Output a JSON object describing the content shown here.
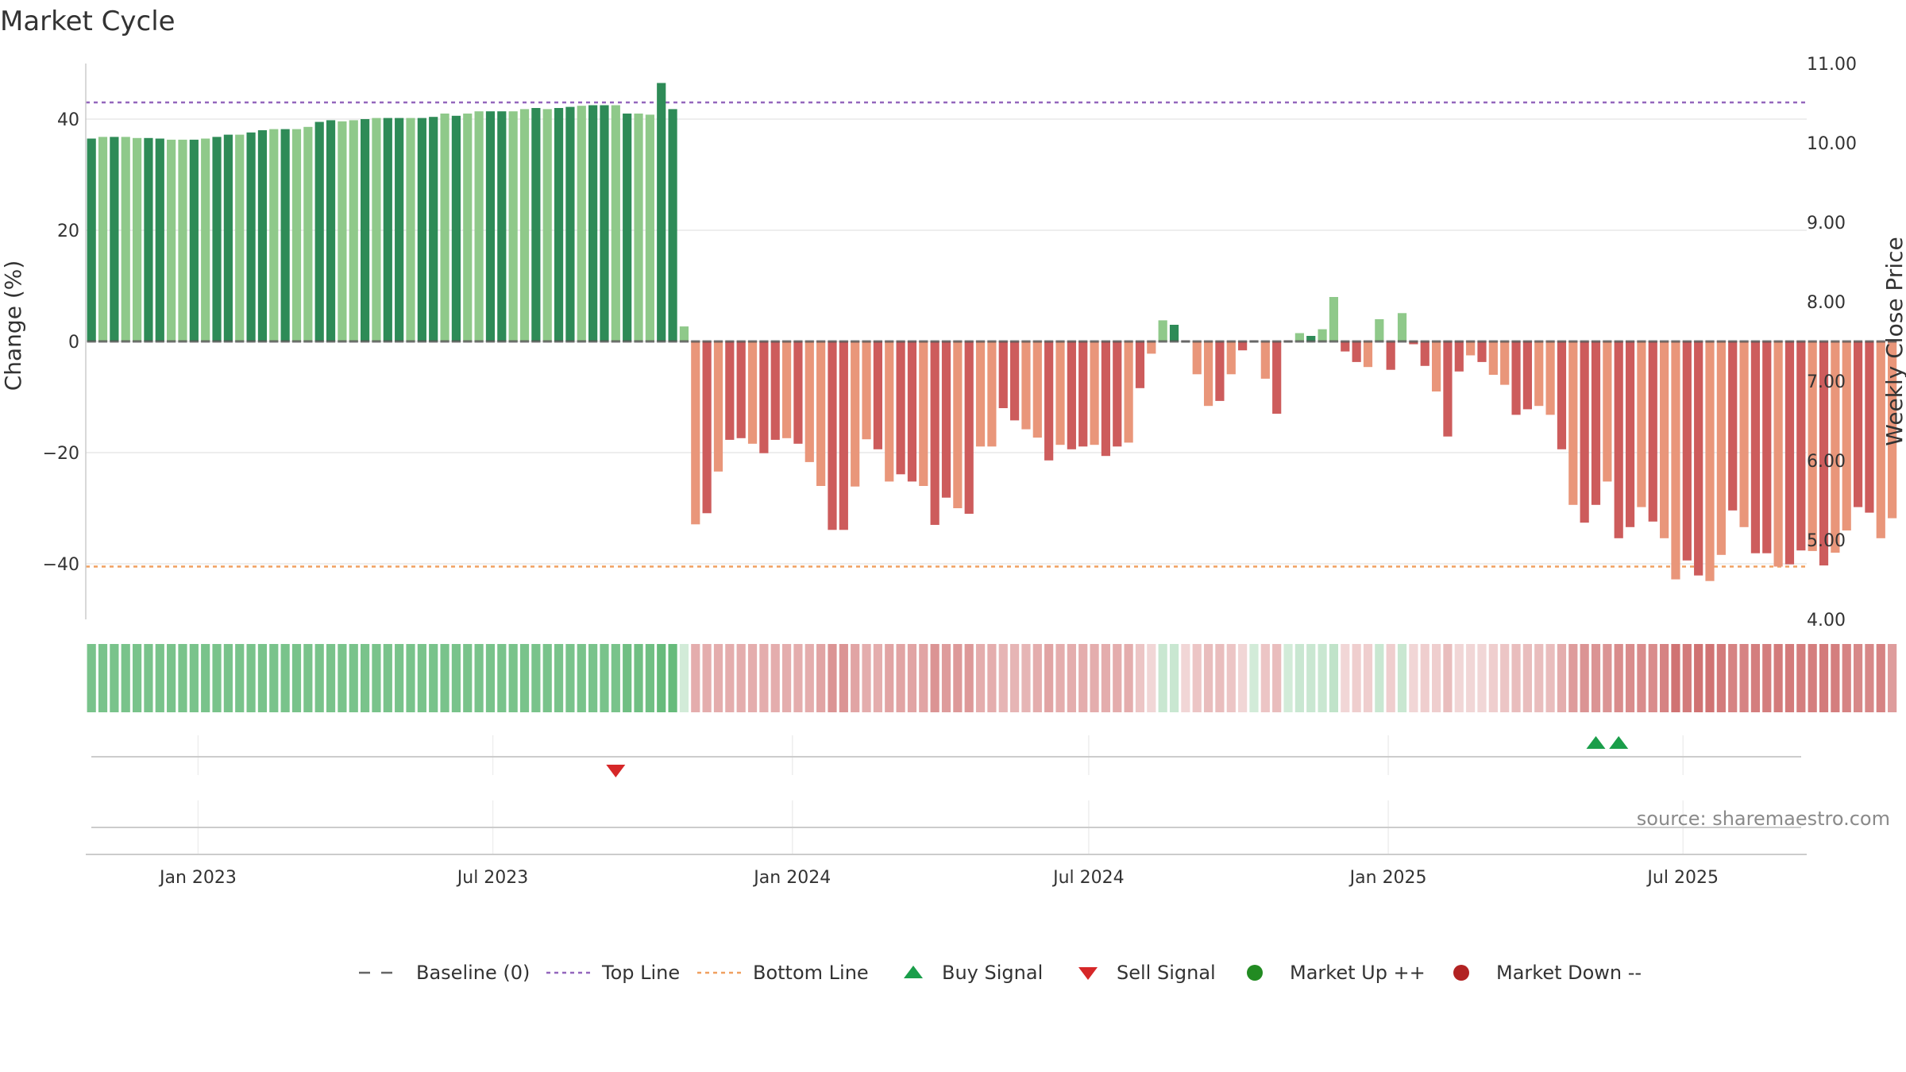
{
  "chart_data": {
    "type": "bar",
    "title": "Market Cycle",
    "ylabel": "Change (%)",
    "y2label": "Weekly Close Price",
    "ylim": [
      -50,
      50
    ],
    "y2lim": [
      4.0,
      11.0
    ],
    "y_ticks": [
      40,
      20,
      0,
      -20,
      -40
    ],
    "y_tick_labels": [
      "40",
      "20",
      "0",
      "−20",
      "−40"
    ],
    "y2_ticks": [
      11.0,
      10.0,
      9.0,
      8.0,
      7.0,
      6.0,
      5.0,
      4.0
    ],
    "y2_tick_labels": [
      "11.00",
      "10.00",
      "9.00",
      "8.00",
      "7.00",
      "6.00",
      "5.00",
      "4.00"
    ],
    "x_start": "2022-10-24",
    "x_end": "2025-09-15",
    "x_ticks": [
      "2023-01-01",
      "2023-07-01",
      "2024-01-01",
      "2024-07-01",
      "2025-01-01",
      "2025-07-01"
    ],
    "x_tick_labels": [
      "Jan 2023",
      "Jul 2023",
      "Jan 2024",
      "Jul 2024",
      "Jan 2025",
      "Jul 2025"
    ],
    "first_week": "2022-10-24",
    "week_step_days": 7,
    "values": [
      36.5,
      36.8,
      36.8,
      36.8,
      36.6,
      36.6,
      36.5,
      36.3,
      36.3,
      36.3,
      36.5,
      36.8,
      37.2,
      37.2,
      37.6,
      38.0,
      38.2,
      38.2,
      38.2,
      38.6,
      39.5,
      39.8,
      39.6,
      39.8,
      40.0,
      40.2,
      40.2,
      40.2,
      40.2,
      40.2,
      40.4,
      41.0,
      40.6,
      41.0,
      41.4,
      41.4,
      41.4,
      41.4,
      41.8,
      42.0,
      41.8,
      42.0,
      42.2,
      42.4,
      42.5,
      42.5,
      42.5,
      41.0,
      41.0,
      40.8,
      46.5,
      41.8,
      2.7,
      -32.9,
      -30.9,
      -23.4,
      -17.7,
      -17.4,
      -18.4,
      -20.1,
      -17.7,
      -17.4,
      -18.4,
      -21.7,
      -26.0,
      -33.9,
      -33.9,
      -26.1,
      -17.6,
      -19.4,
      -25.2,
      -23.9,
      -25.2,
      -26.0,
      -33.0,
      -28.1,
      -30.0,
      -31.0,
      -18.9,
      -18.9,
      -12.0,
      -14.2,
      -15.8,
      -17.3,
      -21.4,
      -18.6,
      -19.4,
      -18.9,
      -18.6,
      -20.6,
      -18.9,
      -18.2,
      -8.4,
      -2.2,
      3.8,
      3.0,
      0,
      -5.9,
      -11.6,
      -10.7,
      -5.9,
      -1.6,
      0,
      -6.7,
      -13.0,
      0,
      1.5,
      1.0,
      2.2,
      8.0,
      -1.8,
      -3.7,
      -4.6,
      4.0,
      -5.1,
      5.1,
      -0.5,
      -4.4,
      -9.0,
      -17.1,
      -5.4,
      -2.5,
      -3.7,
      -6.0,
      -7.8,
      -13.2,
      -12.2,
      -11.6,
      -13.2,
      -19.4,
      -29.4,
      -32.6,
      -29.4,
      -25.2,
      -35.4,
      -33.4,
      -29.8,
      -32.4,
      -35.4,
      -42.8,
      -39.4,
      -42.1,
      -43.1,
      -38.4,
      -30.4,
      -33.4,
      -38.1,
      -38.1,
      -40.5,
      -40.1,
      -37.6,
      -37.7,
      -40.3,
      -38.0,
      -34.0,
      -29.8,
      -30.8,
      -35.4,
      -31.8
    ],
    "market_strength": [
      0.75,
      0.75,
      0.75,
      0.75,
      0.75,
      0.75,
      0.75,
      0.75,
      0.75,
      0.75,
      0.75,
      0.75,
      0.75,
      0.75,
      0.75,
      0.75,
      0.75,
      0.75,
      0.75,
      0.75,
      0.75,
      0.75,
      0.75,
      0.75,
      0.75,
      0.75,
      0.75,
      0.75,
      0.75,
      0.75,
      0.75,
      0.75,
      0.75,
      0.75,
      0.75,
      0.75,
      0.75,
      0.75,
      0.75,
      0.75,
      0.75,
      0.75,
      0.75,
      0.75,
      0.75,
      0.75,
      0.75,
      0.8,
      0.8,
      0.8,
      0.85,
      0.85,
      0.25,
      -0.5,
      -0.5,
      -0.5,
      -0.5,
      -0.5,
      -0.5,
      -0.5,
      -0.5,
      -0.5,
      -0.5,
      -0.5,
      -0.55,
      -0.65,
      -0.65,
      -0.55,
      -0.5,
      -0.5,
      -0.55,
      -0.55,
      -0.55,
      -0.55,
      -0.65,
      -0.6,
      -0.62,
      -0.62,
      -0.5,
      -0.5,
      -0.45,
      -0.45,
      -0.45,
      -0.5,
      -0.55,
      -0.5,
      -0.5,
      -0.5,
      -0.5,
      -0.5,
      -0.5,
      -0.5,
      -0.35,
      -0.25,
      0.3,
      0.3,
      -0.25,
      -0.35,
      -0.4,
      -0.4,
      -0.35,
      -0.25,
      0.25,
      -0.35,
      -0.4,
      0.25,
      0.3,
      0.3,
      0.3,
      0.35,
      -0.25,
      -0.3,
      -0.3,
      0.3,
      -0.3,
      0.3,
      -0.25,
      -0.3,
      -0.3,
      -0.4,
      -0.25,
      -0.25,
      -0.25,
      -0.3,
      -0.35,
      -0.4,
      -0.4,
      -0.4,
      -0.4,
      -0.5,
      -0.6,
      -0.65,
      -0.65,
      -0.65,
      -0.7,
      -0.7,
      -0.7,
      -0.7,
      -0.75,
      -0.85,
      -0.8,
      -0.85,
      -0.85,
      -0.8,
      -0.75,
      -0.75,
      -0.78,
      -0.78,
      -0.8,
      -0.8,
      -0.78,
      -0.78,
      -0.8,
      -0.78,
      -0.75,
      -0.72,
      -0.72,
      -0.75,
      -0.6
    ],
    "top_line": 43,
    "bottom_line": -40.5,
    "buy_signals": [
      "2025-05-05",
      "2025-05-19"
    ],
    "sell_signals": [
      "2023-09-11"
    ],
    "source": "source: sharemaestro.com",
    "legend": {
      "position": "bottom-center",
      "items": [
        {
          "label": "Baseline (0)",
          "symbol": "dash",
          "color": "#666666"
        },
        {
          "label": "Top Line",
          "symbol": "dotted",
          "color": "#9467bd"
        },
        {
          "label": "Bottom Line",
          "symbol": "dotted",
          "color": "#f0a060"
        },
        {
          "label": "Buy Signal",
          "symbol": "triangle-up",
          "color": "#1a9e4a"
        },
        {
          "label": "Sell Signal",
          "symbol": "triangle-down",
          "color": "#d62728"
        },
        {
          "label": "Market Up ++",
          "symbol": "circle",
          "color": "#228B22"
        },
        {
          "label": "Market Down --",
          "symbol": "circle",
          "color": "#b22222"
        }
      ]
    },
    "colors": {
      "up_strong": "#2e8b57",
      "up_light": "#8fc98a",
      "down_strong": "#cd5c5c",
      "down_light": "#e9967a",
      "top_line": "#9467bd",
      "bottom_line": "#f0a060",
      "grid": "#e8e8e8"
    },
    "grid": true
  }
}
